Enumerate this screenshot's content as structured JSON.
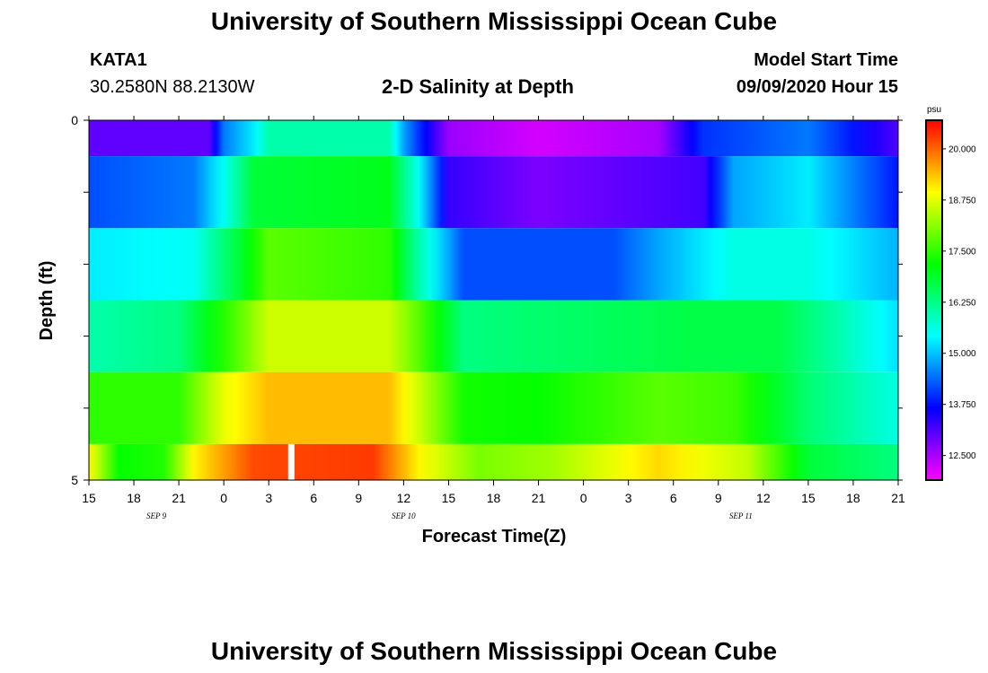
{
  "header": {
    "title": "University of Southern Mississippi Ocean Cube",
    "footer_title": "University of Southern Mississippi Ocean Cube",
    "station": "KATA1",
    "location": "30.2580N 88.2130W",
    "subtitle": "2-D Salinity at Depth",
    "model_start_label": "Model Start Time",
    "model_start_value": "09/09/2020 Hour 15"
  },
  "chart_data": {
    "type": "heatmap",
    "title": "2-D Salinity at Depth",
    "xlabel": "Forecast Time(Z)",
    "ylabel": "Depth (ft)",
    "x_tick_labels": [
      "15",
      "18",
      "21",
      "0",
      "3",
      "6",
      "9",
      "12",
      "15",
      "18",
      "21",
      "0",
      "3",
      "6",
      "9",
      "12",
      "15",
      "18",
      "21"
    ],
    "x_date_labels": [
      {
        "label": "SEP 9",
        "at_tick": 1.5
      },
      {
        "label": "SEP 10",
        "at_tick": 7
      },
      {
        "label": "SEP 11",
        "at_tick": 14.5
      }
    ],
    "y_tick_labels": [
      "0",
      "5"
    ],
    "ylim": [
      0,
      5
    ],
    "x_hours": [
      0,
      54
    ],
    "depth_layers": [
      0,
      0.5,
      1.5,
      2.5,
      3.5,
      4.5,
      5
    ],
    "colorbar": {
      "unit": "psu",
      "range": [
        11.9,
        20.7
      ],
      "ticks": [
        "12.500",
        "13.750",
        "15.000",
        "16.250",
        "17.500",
        "18.750",
        "20.000"
      ],
      "tick_values": [
        12.5,
        13.75,
        15.0,
        16.25,
        17.5,
        18.75,
        20.0
      ]
    },
    "rows": [
      {
        "depth": "0.0-0.5",
        "keys": [
          [
            0,
            13.0
          ],
          [
            8,
            13.0
          ],
          [
            9,
            14.5
          ],
          [
            11,
            15.3
          ],
          [
            12,
            16.0
          ],
          [
            20,
            16.0
          ],
          [
            21,
            14.8
          ],
          [
            22,
            14.0
          ],
          [
            24,
            12.6
          ],
          [
            30,
            12.2
          ],
          [
            38,
            12.5
          ],
          [
            41,
            14.0
          ],
          [
            48,
            14.5
          ],
          [
            54,
            13.1
          ]
        ]
      },
      {
        "depth": "0.5-1.5",
        "keys": [
          [
            0,
            14.2
          ],
          [
            7,
            14.5
          ],
          [
            9,
            15.5
          ],
          [
            11,
            16.8
          ],
          [
            20,
            17.0
          ],
          [
            22,
            15.5
          ],
          [
            24,
            13.3
          ],
          [
            30,
            12.8
          ],
          [
            41,
            13.2
          ],
          [
            43,
            14.8
          ],
          [
            48,
            15.3
          ],
          [
            54,
            13.8
          ]
        ]
      },
      {
        "depth": "1.5-2.5",
        "keys": [
          [
            0,
            15.3
          ],
          [
            7,
            15.5
          ],
          [
            10,
            16.8
          ],
          [
            12,
            17.8
          ],
          [
            20,
            17.5
          ],
          [
            22,
            16.0
          ],
          [
            25,
            14.2
          ],
          [
            35,
            14.2
          ],
          [
            38,
            14.8
          ],
          [
            43,
            15.6
          ],
          [
            48,
            15.6
          ],
          [
            54,
            14.9
          ]
        ]
      },
      {
        "depth": "2.5-3.5",
        "keys": [
          [
            0,
            16.0
          ],
          [
            6,
            16.3
          ],
          [
            10,
            17.8
          ],
          [
            12,
            18.6
          ],
          [
            20,
            18.6
          ],
          [
            22,
            17.8
          ],
          [
            25,
            16.3
          ],
          [
            40,
            16.7
          ],
          [
            46,
            16.7
          ],
          [
            50,
            16.0
          ],
          [
            54,
            15.2
          ]
        ]
      },
      {
        "depth": "3.5-4.5",
        "keys": [
          [
            0,
            17.5
          ],
          [
            6,
            17.5
          ],
          [
            9,
            18.8
          ],
          [
            12,
            19.4
          ],
          [
            20,
            19.4
          ],
          [
            22,
            18.6
          ],
          [
            25,
            17.3
          ],
          [
            30,
            17.2
          ],
          [
            38,
            17.8
          ],
          [
            43,
            17.6
          ],
          [
            48,
            16.4
          ],
          [
            54,
            15.6
          ]
        ]
      },
      {
        "depth": "4.5-5.0",
        "keys": [
          [
            0,
            19.0
          ],
          [
            2,
            17.2
          ],
          [
            5,
            17.4
          ],
          [
            7,
            19.0
          ],
          [
            11,
            20.2
          ],
          [
            19,
            20.3
          ],
          [
            22,
            19.0
          ],
          [
            26,
            18.0
          ],
          [
            31,
            18.3
          ],
          [
            38,
            19.2
          ],
          [
            44,
            18.5
          ],
          [
            48,
            16.8
          ],
          [
            54,
            16.3
          ]
        ]
      }
    ],
    "gap": {
      "hour": 13.5,
      "row": 5,
      "note": "missing data"
    }
  }
}
